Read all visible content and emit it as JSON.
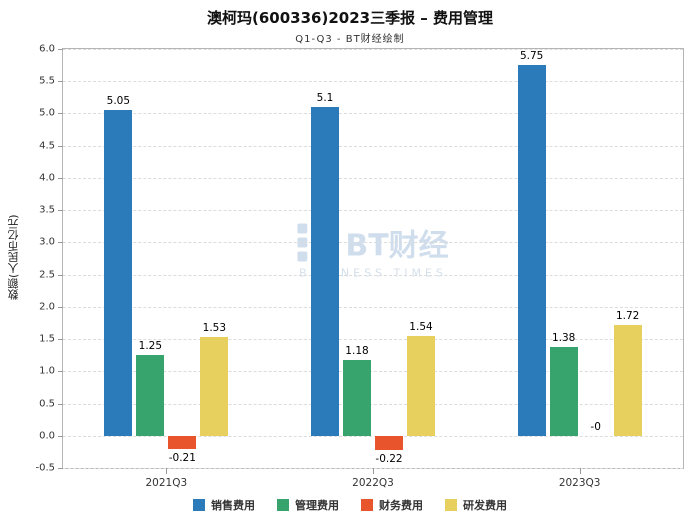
{
  "title": "澳柯玛(600336)2023三季报 – 费用管理",
  "subtitle": "Q1-Q3 - BT财经绘制",
  "watermark": {
    "brand": "BT财经",
    "sub": "BUSINESS TIMES"
  },
  "chart_data": {
    "type": "bar",
    "title": "澳柯玛(600336)2023三季报 – 费用管理",
    "subtitle": "Q1-Q3 - BT财经绘制",
    "categories": [
      "2021Q3",
      "2022Q3",
      "2023Q3"
    ],
    "series": [
      {
        "name": "销售费用",
        "color": "#2b7bba",
        "values": [
          5.05,
          5.1,
          5.75
        ],
        "labels": [
          "5.05",
          "5.1",
          "5.75"
        ]
      },
      {
        "name": "管理费用",
        "color": "#37a46d",
        "values": [
          1.25,
          1.18,
          1.38
        ],
        "labels": [
          "1.25",
          "1.18",
          "1.38"
        ]
      },
      {
        "name": "财务费用",
        "color": "#e8552d",
        "values": [
          -0.21,
          -0.22,
          0
        ],
        "labels": [
          "-0.21",
          "-0.22",
          "-0"
        ]
      },
      {
        "name": "研发费用",
        "color": "#e8d05e",
        "values": [
          1.53,
          1.54,
          1.72
        ],
        "labels": [
          "1.53",
          "1.54",
          "1.72"
        ]
      }
    ],
    "xlabel": "",
    "ylabel": "数额(人民币亿元)",
    "ylim": [
      -0.5,
      6.0
    ],
    "ytick_step": 0.5,
    "grid": true,
    "legend_position": "bottom"
  }
}
